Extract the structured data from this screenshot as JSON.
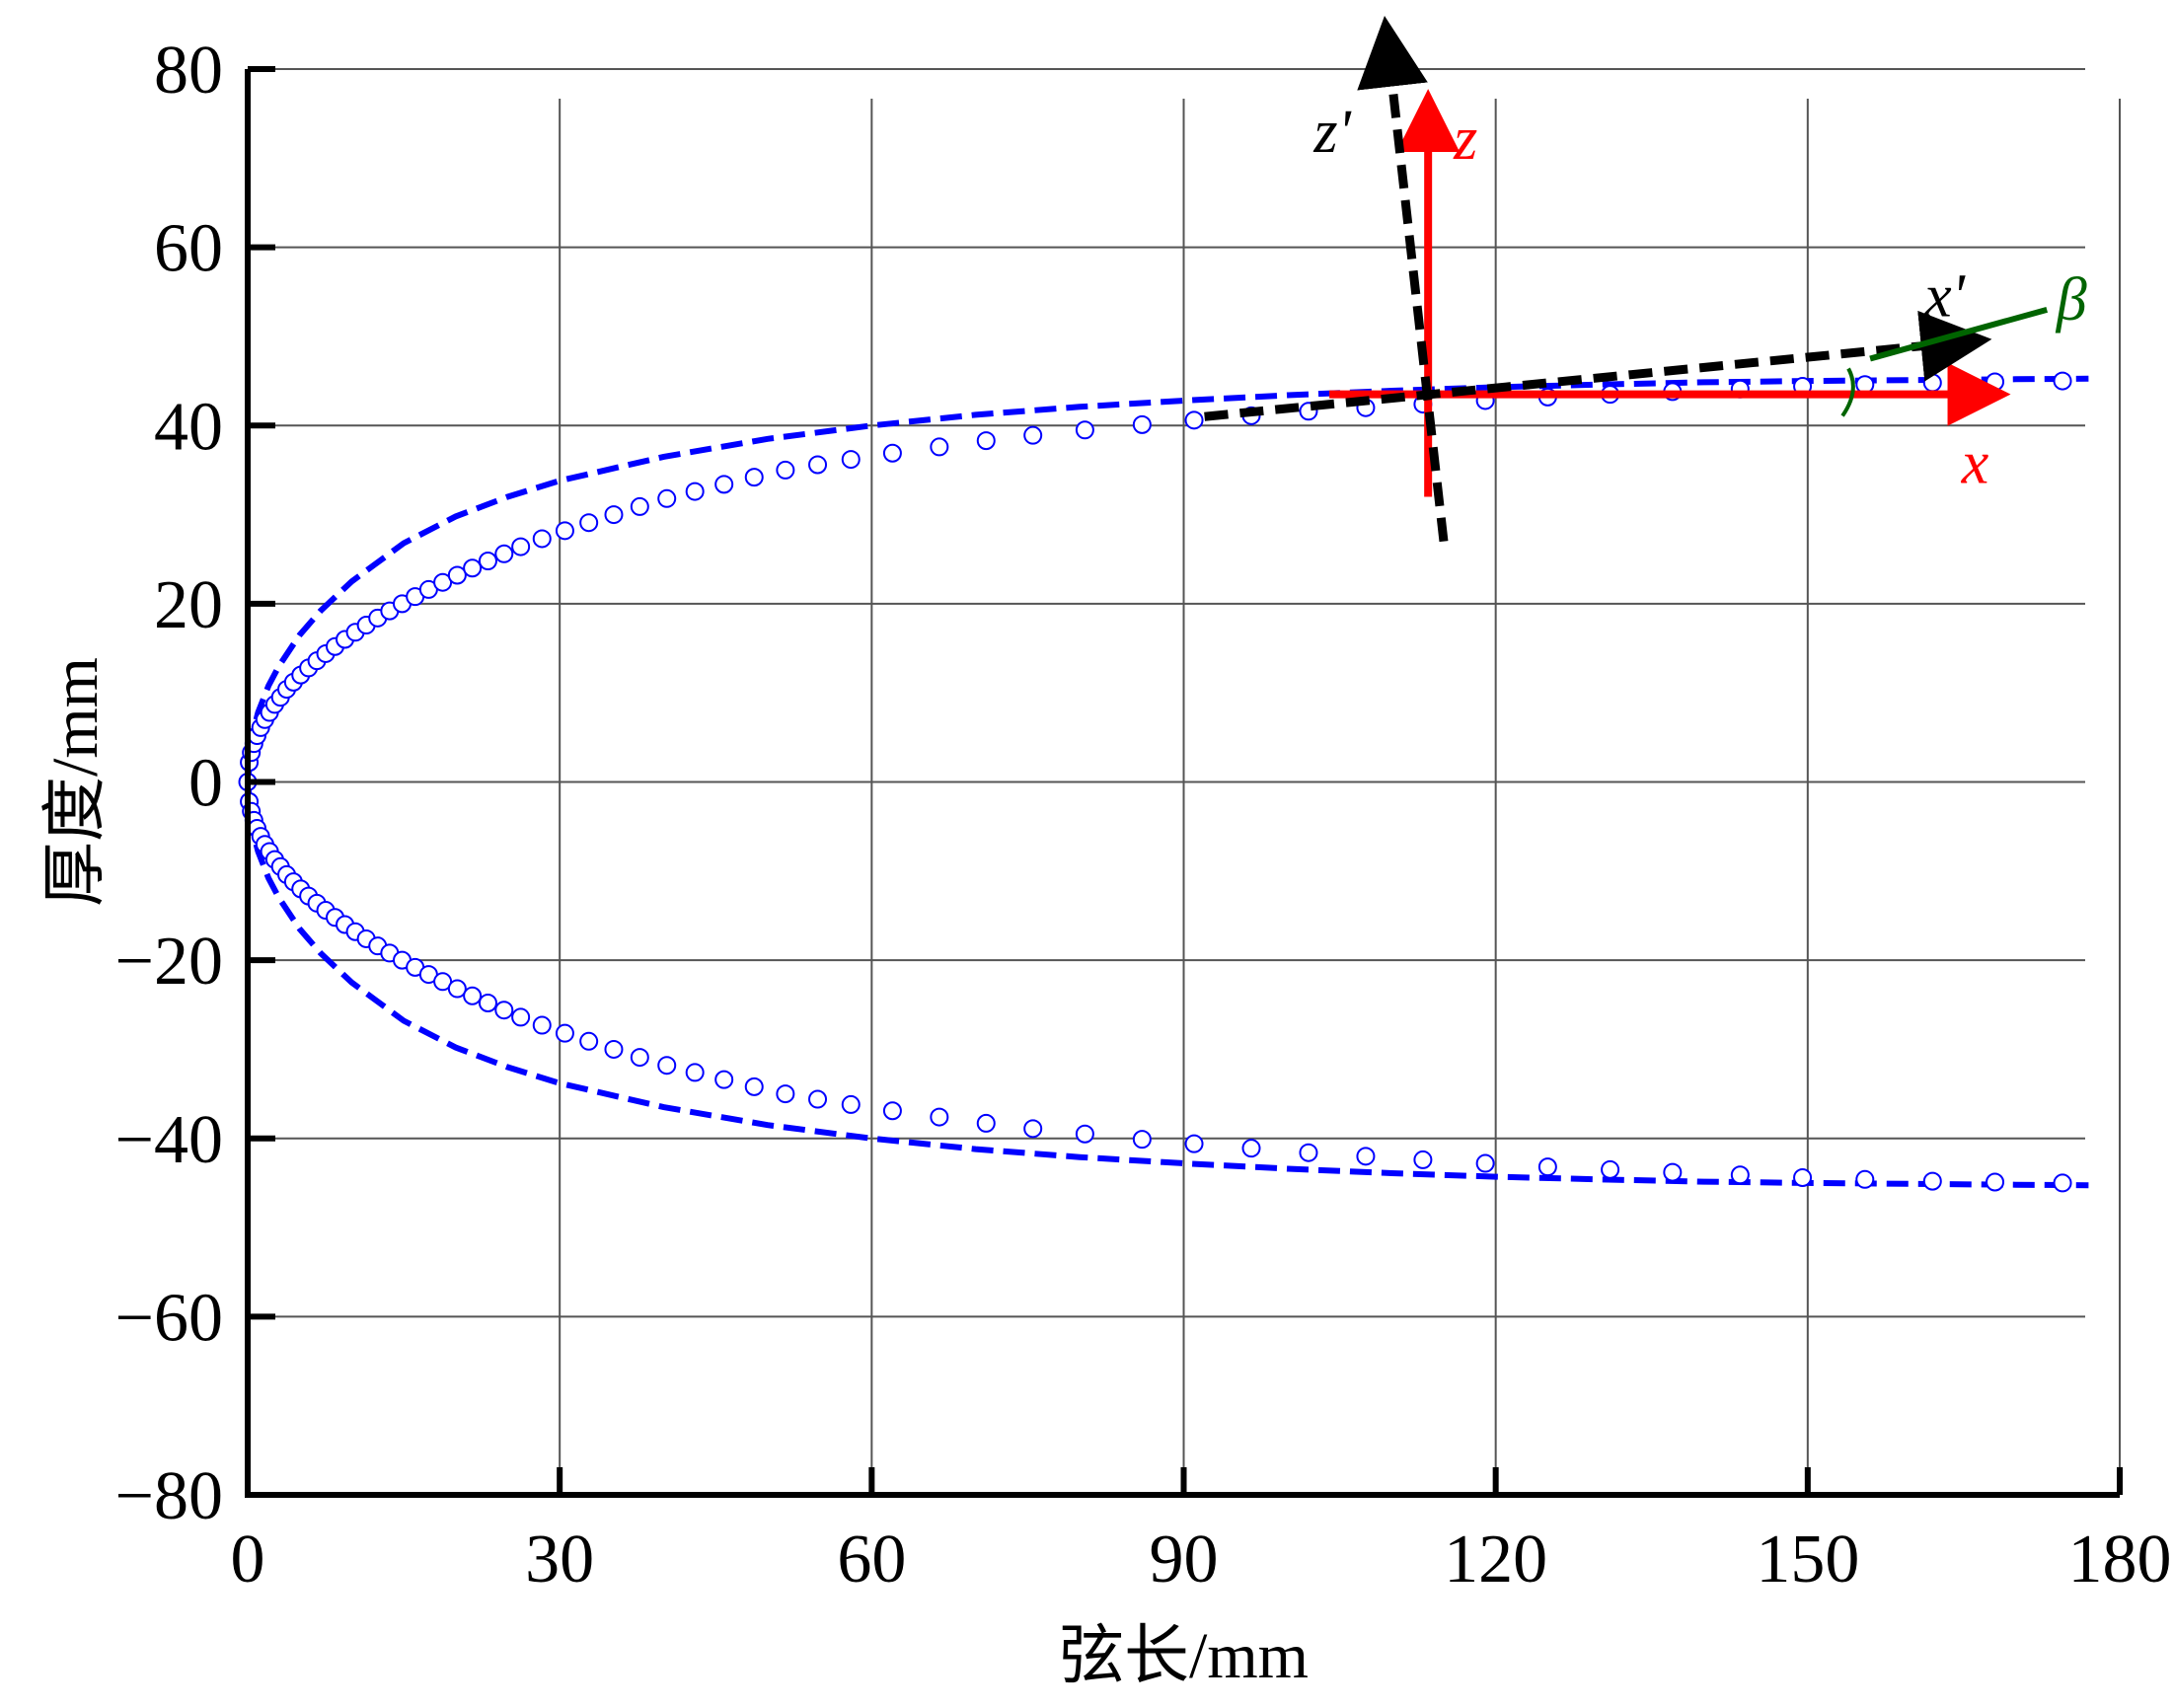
{
  "chart_data": {
    "type": "line",
    "title": "",
    "xlabel": "弦长/mm",
    "ylabel": "厚度/mm",
    "xlim": [
      0,
      180
    ],
    "ylim": [
      -80,
      80
    ],
    "xticks": [
      0,
      30,
      60,
      90,
      120,
      150,
      180
    ],
    "yticks": [
      -80,
      -60,
      -40,
      -20,
      0,
      20,
      40,
      60,
      80
    ],
    "xtick_labels": [
      "0",
      "30",
      "60",
      "90",
      "120",
      "150",
      "180"
    ],
    "ytick_labels": [
      "−80",
      "−60",
      "−40",
      "−20",
      "0",
      "20",
      "40",
      "60",
      "80"
    ],
    "grid": true,
    "series": [
      {
        "style": "dashed line",
        "color": "#0000ff",
        "x": [
          0,
          0.5,
          1,
          2,
          3,
          5,
          7,
          10,
          15,
          20,
          25,
          30,
          40,
          50,
          60,
          70,
          80,
          90,
          100,
          110,
          120,
          130,
          140,
          150,
          160,
          170,
          177
        ],
        "y": [
          0,
          5.6,
          7.8,
          10.8,
          13,
          16.5,
          19.2,
          22.5,
          26.8,
          29.8,
          32,
          33.8,
          36.5,
          38.5,
          40,
          41.2,
          42.1,
          42.8,
          43.4,
          43.9,
          44.3,
          44.6,
          44.85,
          45.0,
          45.1,
          45.2,
          45.25
        ],
        "symmetric_lower": true
      },
      {
        "style": "open circle markers",
        "color": "#0000ff",
        "x": [
          0,
          0.15,
          0.35,
          0.6,
          0.9,
          1.25,
          1.65,
          2.1,
          2.6,
          3.15,
          3.75,
          4.4,
          5.1,
          5.85,
          6.65,
          7.5,
          8.4,
          9.35,
          10.35,
          11.4,
          12.5,
          13.65,
          14.85,
          16.1,
          17.4,
          18.75,
          20.15,
          21.6,
          23.1,
          24.65,
          26.25,
          28.3,
          30.5,
          32.8,
          35.2,
          37.7,
          40.3,
          43.0,
          45.8,
          48.7,
          51.7,
          54.8,
          58.0,
          62.0,
          66.5,
          71.0,
          75.5,
          80.5,
          86.0,
          91.0,
          96.5,
          102.0,
          107.5,
          113.0,
          119.0,
          125.0,
          131.0,
          137.0,
          143.5,
          149.5,
          155.5,
          162.0,
          168.0,
          174.5
        ],
        "y": [
          0,
          2.2,
          3.3,
          4.3,
          5.2,
          6.1,
          7.0,
          7.8,
          8.7,
          9.5,
          10.4,
          11.2,
          12.0,
          12.8,
          13.6,
          14.4,
          15.2,
          16.0,
          16.8,
          17.6,
          18.4,
          19.2,
          20.0,
          20.8,
          21.6,
          22.4,
          23.2,
          24.0,
          24.8,
          25.6,
          26.4,
          27.3,
          28.2,
          29.1,
          30.0,
          30.9,
          31.8,
          32.6,
          33.4,
          34.2,
          35.0,
          35.6,
          36.2,
          36.9,
          37.6,
          38.3,
          38.9,
          39.5,
          40.1,
          40.6,
          41.1,
          41.6,
          42.0,
          42.4,
          42.8,
          43.2,
          43.5,
          43.8,
          44.1,
          44.4,
          44.6,
          44.8,
          44.9,
          45.0
        ],
        "symmetric_lower": true
      }
    ],
    "annotations": [
      {
        "label": "z",
        "color": "#ff0000",
        "kind": "axis-arrow",
        "from": [
          113.5,
          32
        ],
        "to": [
          113.5,
          76
        ]
      },
      {
        "label": "x",
        "color": "#ff0000",
        "kind": "axis-arrow",
        "from": [
          104,
          43.5
        ],
        "to": [
          168,
          43.5
        ]
      },
      {
        "label": "z'",
        "color": "#000000",
        "kind": "dashed-arrow",
        "from": [
          115,
          27
        ],
        "to": [
          109.5,
          84
        ]
      },
      {
        "label": "x'",
        "color": "#000000",
        "kind": "dashed-arrow",
        "from": [
          92,
          41
        ],
        "to": [
          166,
          49.5
        ]
      },
      {
        "label": "β",
        "color": "#006400",
        "kind": "angle-marker",
        "from": [
          156,
          47.5
        ],
        "to": [
          173,
          53
        ]
      }
    ]
  }
}
